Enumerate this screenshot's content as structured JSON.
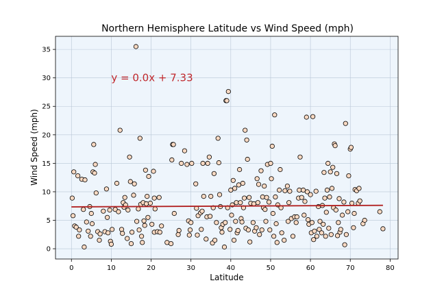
{
  "chart_data": {
    "type": "scatter",
    "title": "Northern Hemisphere Latitude vs Wind Speed (mph)",
    "xlabel": "Latitude",
    "ylabel": "Wind Speed (mph)",
    "xlim": [
      -4,
      82
    ],
    "ylim": [
      -1.8,
      37.3
    ],
    "xticks": [
      0,
      10,
      20,
      30,
      40,
      50,
      60,
      70,
      80
    ],
    "yticks": [
      0,
      5,
      10,
      15,
      20,
      25,
      30,
      35
    ],
    "grid": true,
    "annotation": {
      "text": "y = 0.0x + 7.33",
      "x": 10,
      "y": 30,
      "color": "#c0282d"
    },
    "regression": {
      "slope": 0.0,
      "intercept": 7.33,
      "x_range": [
        0,
        78.2
      ],
      "y_range": [
        7.35,
        7.62
      ],
      "color": "#b22222"
    },
    "colors": {
      "background": "#eef5fc",
      "marker_fill": "#f9d9c2",
      "marker_edge": "#000000",
      "grid": "#b8c6d6"
    },
    "points": [
      [
        0.2,
        8.9
      ],
      [
        0.4,
        5.8
      ],
      [
        0.6,
        13.5
      ],
      [
        0.8,
        4
      ],
      [
        1.2,
        3.8
      ],
      [
        1.6,
        12.8
      ],
      [
        1.8,
        2.2
      ],
      [
        2,
        3.3
      ],
      [
        2.6,
        12.2
      ],
      [
        3,
        6.9
      ],
      [
        3.2,
        0.3
      ],
      [
        3.4,
        12.1
      ],
      [
        3.8,
        4.7
      ],
      [
        4.2,
        3.1
      ],
      [
        4.6,
        7.4
      ],
      [
        4.8,
        2.2
      ],
      [
        5,
        6.2
      ],
      [
        5.2,
        4.4
      ],
      [
        5.4,
        13.5
      ],
      [
        5.6,
        18.3
      ],
      [
        5.8,
        13.3
      ],
      [
        6,
        14.8
      ],
      [
        6.2,
        9.8
      ],
      [
        6.6,
        3
      ],
      [
        7,
        1.5
      ],
      [
        7.2,
        2.6
      ],
      [
        8,
        6.6
      ],
      [
        8.4,
        3
      ],
      [
        8.8,
        10.5
      ],
      [
        9,
        5.5
      ],
      [
        9.2,
        2.8
      ],
      [
        9.6,
        6.8
      ],
      [
        9.8,
        1.3
      ],
      [
        10,
        0.8
      ],
      [
        10.2,
        3.4
      ],
      [
        11,
        6.9
      ],
      [
        11.4,
        11.5
      ],
      [
        11.8,
        6.5
      ],
      [
        12.2,
        20.8
      ],
      [
        12.6,
        3.4
      ],
      [
        12.8,
        2.7
      ],
      [
        13,
        8.1
      ],
      [
        13.2,
        7.3
      ],
      [
        13.4,
        9
      ],
      [
        13.6,
        7.7
      ],
      [
        14,
        1.8
      ],
      [
        14.2,
        6.8
      ],
      [
        14.6,
        16.1
      ],
      [
        14.8,
        11.8
      ],
      [
        15,
        0.9
      ],
      [
        15.2,
        2.9
      ],
      [
        15.6,
        9.4
      ],
      [
        15.8,
        11.4
      ],
      [
        16.2,
        35.5
      ],
      [
        16.4,
        4.8
      ],
      [
        16.8,
        7
      ],
      [
        17,
        3.3
      ],
      [
        17.2,
        19.4
      ],
      [
        17.4,
        7.8
      ],
      [
        17.6,
        2.2
      ],
      [
        17.8,
        1.1
      ],
      [
        18,
        8.1
      ],
      [
        18.2,
        4.9
      ],
      [
        18.4,
        4.1
      ],
      [
        18.6,
        13.8
      ],
      [
        18.8,
        7.9
      ],
      [
        19,
        9.2
      ],
      [
        19.2,
        5.5
      ],
      [
        19.4,
        12.7
      ],
      [
        19.8,
        8
      ],
      [
        20.2,
        4.3
      ],
      [
        20.6,
        13.6
      ],
      [
        20.8,
        2.9
      ],
      [
        20.8,
        8.9
      ],
      [
        21,
        7
      ],
      [
        21.6,
        3
      ],
      [
        22,
        9
      ],
      [
        22.2,
        2.9
      ],
      [
        22.6,
        4
      ],
      [
        24,
        1.1
      ],
      [
        25,
        0.9
      ],
      [
        25.2,
        15.6
      ],
      [
        25.4,
        18.3
      ],
      [
        25.6,
        18.3
      ],
      [
        25.8,
        6.2
      ],
      [
        26.8,
        2.5
      ],
      [
        27,
        3.2
      ],
      [
        27.6,
        15
      ],
      [
        28.4,
        17.2
      ],
      [
        29,
        14.8
      ],
      [
        29.4,
        4.9
      ],
      [
        29.6,
        2.4
      ],
      [
        29.8,
        3.3
      ],
      [
        30,
        4.6
      ],
      [
        30.2,
        15
      ],
      [
        31.2,
        11.4
      ],
      [
        31.4,
        7.1
      ],
      [
        31.6,
        2.4
      ],
      [
        31.8,
        5.8
      ],
      [
        32.4,
        6.3
      ],
      [
        32.6,
        3.4
      ],
      [
        32.8,
        6.6
      ],
      [
        33,
        15
      ],
      [
        33.2,
        9.2
      ],
      [
        33.8,
        1.7
      ],
      [
        34,
        5.6
      ],
      [
        34.2,
        15
      ],
      [
        34.6,
        16.1
      ],
      [
        34.8,
        5.7
      ],
      [
        35,
        9.2
      ],
      [
        35.4,
        1
      ],
      [
        35.6,
        7.2
      ],
      [
        35.8,
        13.2
      ],
      [
        36,
        1.5
      ],
      [
        36.4,
        4.6
      ],
      [
        36.8,
        19.4
      ],
      [
        37,
        15.1
      ],
      [
        37.2,
        9.5
      ],
      [
        37.4,
        7.4
      ],
      [
        37.6,
        3.7
      ],
      [
        37.8,
        2.9
      ],
      [
        38,
        4.3
      ],
      [
        38.4,
        0.3
      ],
      [
        38.6,
        4.6
      ],
      [
        38.8,
        26
      ],
      [
        39,
        26
      ],
      [
        39.2,
        7.2
      ],
      [
        39.4,
        27.6
      ],
      [
        39.8,
        3.4
      ],
      [
        40,
        10.3
      ],
      [
        40.2,
        5.9
      ],
      [
        40.4,
        7.7
      ],
      [
        40.6,
        12
      ],
      [
        40.8,
        1.5
      ],
      [
        41,
        10.6
      ],
      [
        41.2,
        4.8
      ],
      [
        41.4,
        8.1
      ],
      [
        41.6,
        2.8
      ],
      [
        41.8,
        3.2
      ],
      [
        42,
        11.2
      ],
      [
        42.2,
        13.9
      ],
      [
        42.4,
        8.1
      ],
      [
        42.6,
        5.3
      ],
      [
        42.8,
        4.7
      ],
      [
        43,
        11.5
      ],
      [
        43.2,
        7.2
      ],
      [
        43.4,
        8.9
      ],
      [
        43.6,
        20.8
      ],
      [
        43.8,
        3.6
      ],
      [
        44,
        19.1
      ],
      [
        44.2,
        15.7
      ],
      [
        44.4,
        3.3
      ],
      [
        44.6,
        9
      ],
      [
        44.8,
        1.2
      ],
      [
        45,
        8
      ],
      [
        45.6,
        4.6
      ],
      [
        45.8,
        7.9
      ],
      [
        46,
        3.1
      ],
      [
        46.4,
        3.7
      ],
      [
        46.6,
        12.3
      ],
      [
        46.8,
        8.1
      ],
      [
        47,
        11.3
      ],
      [
        47.2,
        2.5
      ],
      [
        47.6,
        13.7
      ],
      [
        47.8,
        3.3
      ],
      [
        48,
        9.1
      ],
      [
        48.2,
        7.2
      ],
      [
        48.4,
        11
      ],
      [
        48.6,
        6.9
      ],
      [
        48.8,
        4.8
      ],
      [
        49,
        9
      ],
      [
        49.2,
        14.8
      ],
      [
        49.6,
        8.2
      ],
      [
        49.8,
        3.3
      ],
      [
        50,
        15
      ],
      [
        50.2,
        12.3
      ],
      [
        50.4,
        18
      ],
      [
        50.6,
        6.2
      ],
      [
        50.8,
        2.2
      ],
      [
        51,
        23.5
      ],
      [
        51.2,
        9.1
      ],
      [
        51.4,
        4.4
      ],
      [
        51.6,
        1.1
      ],
      [
        51.8,
        7.7
      ],
      [
        52.2,
        10.3
      ],
      [
        52.4,
        13.9
      ],
      [
        52.6,
        7.2
      ],
      [
        52.8,
        2.8
      ],
      [
        53.4,
        1.5
      ],
      [
        53.6,
        10.2
      ],
      [
        54.2,
        11
      ],
      [
        54.4,
        4.8
      ],
      [
        54.6,
        8.1
      ],
      [
        54.8,
        10.1
      ],
      [
        55.2,
        5.3
      ],
      [
        55.6,
        2.2
      ],
      [
        56,
        5.6
      ],
      [
        56.4,
        4.6
      ],
      [
        56.6,
        5.6
      ],
      [
        57,
        8.9
      ],
      [
        57.2,
        10.3
      ],
      [
        57.4,
        16.1
      ],
      [
        57.8,
        9
      ],
      [
        58.2,
        10.3
      ],
      [
        58.4,
        5.9
      ],
      [
        58.6,
        8.3
      ],
      [
        59,
        23.1
      ],
      [
        59.2,
        10
      ],
      [
        59.4,
        5.1
      ],
      [
        59.6,
        4.3
      ],
      [
        60,
        9.5
      ],
      [
        60.2,
        2.8
      ],
      [
        60.4,
        4.6
      ],
      [
        60.6,
        23.2
      ],
      [
        60.8,
        1.6
      ],
      [
        61,
        3.1
      ],
      [
        61.4,
        10.1
      ],
      [
        61.6,
        2.2
      ],
      [
        62,
        7.4
      ],
      [
        62.2,
        3.4
      ],
      [
        62.4,
        4.8
      ],
      [
        62.8,
        2.8
      ],
      [
        63,
        7.6
      ],
      [
        63.2,
        4.3
      ],
      [
        63.4,
        13.4
      ],
      [
        63.6,
        8.9
      ],
      [
        63.8,
        2.2
      ],
      [
        64,
        6.4
      ],
      [
        64.2,
        10.3
      ],
      [
        64.4,
        15
      ],
      [
        64.6,
        3.6
      ],
      [
        64.8,
        9.1
      ],
      [
        65,
        13.5
      ],
      [
        65.2,
        2.5
      ],
      [
        65.4,
        10.6
      ],
      [
        65.6,
        14.3
      ],
      [
        65.8,
        7.2
      ],
      [
        66,
        18.4
      ],
      [
        66.2,
        18.1
      ],
      [
        66.4,
        6.8
      ],
      [
        66.6,
        13.2
      ],
      [
        66.8,
        2.3
      ],
      [
        67,
        4.6
      ],
      [
        67.2,
        8.8
      ],
      [
        67.4,
        2.9
      ],
      [
        67.6,
        3.4
      ],
      [
        68,
        5.9
      ],
      [
        68.4,
        8.2
      ],
      [
        68.6,
        0.7
      ],
      [
        68.8,
        22
      ],
      [
        69,
        2.5
      ],
      [
        69.4,
        6.5
      ],
      [
        69.6,
        12.8
      ],
      [
        70,
        17.5
      ],
      [
        70.2,
        17.8
      ],
      [
        70.4,
        8
      ],
      [
        70.8,
        3.7
      ],
      [
        71,
        6.2
      ],
      [
        71.2,
        10.4
      ],
      [
        71.6,
        10.2
      ],
      [
        72,
        8
      ],
      [
        72.2,
        10.6
      ],
      [
        72.4,
        8.4
      ],
      [
        73.2,
        4.4
      ],
      [
        73.6,
        5
      ],
      [
        77.4,
        6.5
      ],
      [
        78.2,
        3.5
      ]
    ]
  }
}
